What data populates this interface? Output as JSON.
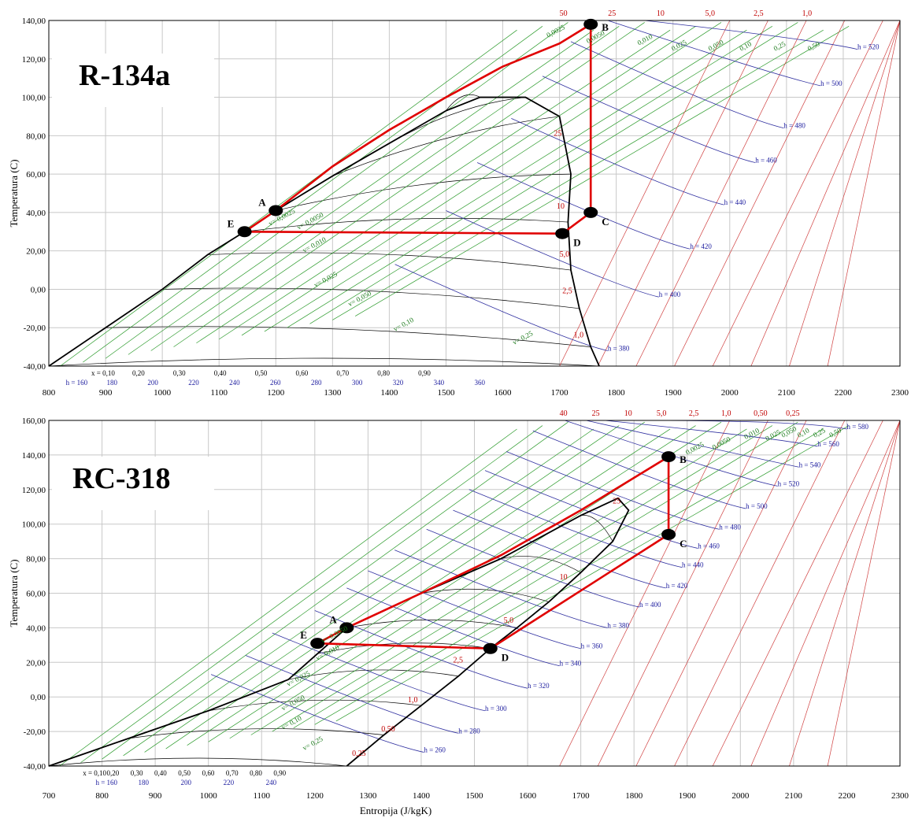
{
  "chart_data": [
    {
      "type": "line",
      "title": "R-134a",
      "xlabel": "",
      "ylabel": "Temperatura (C)",
      "xlim": [
        800,
        2300
      ],
      "ylim": [
        -40,
        140
      ],
      "x_ticks": [
        "800",
        "900",
        "1000",
        "1100",
        "1200",
        "1300",
        "1400",
        "1500",
        "1600",
        "1700",
        "1800",
        "1900",
        "2000",
        "2100",
        "2200",
        "2300"
      ],
      "y_ticks": [
        "-40,00",
        "-20,00",
        "0,00",
        "20,00",
        "40,00",
        "60,00",
        "80,00",
        "100,00",
        "120,00",
        "140,00"
      ],
      "grid": true,
      "cycle_points": [
        {
          "name": "A",
          "x": 1200,
          "y": 41
        },
        {
          "name": "B",
          "x": 1755,
          "y": 138
        },
        {
          "name": "C",
          "x": 1755,
          "y": 40
        },
        {
          "name": "D",
          "x": 1705,
          "y": 29
        },
        {
          "name": "E",
          "x": 1145,
          "y": 30
        }
      ],
      "saturation_dome": {
        "liquid": [
          [
            800,
            -40
          ],
          [
            900,
            -20
          ],
          [
            1000,
            0
          ],
          [
            1080,
            18
          ],
          [
            1145,
            30
          ],
          [
            1200,
            41
          ],
          [
            1300,
            59
          ],
          [
            1400,
            76
          ],
          [
            1500,
            93
          ],
          [
            1560,
            100
          ]
        ],
        "vapor": [
          [
            1560,
            100
          ],
          [
            1640,
            100
          ],
          [
            1700,
            90
          ],
          [
            1720,
            60
          ],
          [
            1715,
            35
          ],
          [
            1720,
            10
          ],
          [
            1735,
            -10
          ],
          [
            1755,
            -30
          ],
          [
            1770,
            -40
          ]
        ]
      },
      "cycle_path": [
        [
          1145,
          30
        ],
        [
          1200,
          41
        ],
        [
          1300,
          64
        ],
        [
          1400,
          83
        ],
        [
          1500,
          100
        ],
        [
          1600,
          116
        ],
        [
          1700,
          128
        ],
        [
          1755,
          138
        ],
        [
          1755,
          40
        ],
        [
          1705,
          29
        ],
        [
          1145,
          30
        ]
      ],
      "quality_labels": [
        "x = 0,10",
        "0,20",
        "0,30",
        "0,40",
        "0,50",
        "0,60",
        "0,70",
        "0,80",
        "0,90"
      ],
      "enthalpy_labels_low": [
        "h = 160",
        "180",
        "200",
        "220",
        "240",
        "260",
        "280",
        "300",
        "320",
        "340",
        "360"
      ],
      "enthalpy_labels_high": [
        {
          "t": "h = 380",
          "x": 1785,
          "y": -32
        },
        {
          "t": "h = 400",
          "x": 1875,
          "y": -4
        },
        {
          "t": "h = 420",
          "x": 1930,
          "y": 21
        },
        {
          "t": "h = 440",
          "x": 1990,
          "y": 44
        },
        {
          "t": "h = 460",
          "x": 2045,
          "y": 66
        },
        {
          "t": "h = 480",
          "x": 2095,
          "y": 84
        },
        {
          "t": "h = 500",
          "x": 2160,
          "y": 106
        },
        {
          "t": "h = 520",
          "x": 2225,
          "y": 125
        }
      ],
      "pressure_labels_top": [
        "50",
        "25",
        "10",
        "5,0",
        "2,5",
        "1,0"
      ],
      "pressure_labels_mid": [
        {
          "t": "25",
          "x": 1690,
          "y": 80
        },
        {
          "t": "10",
          "x": 1695,
          "y": 42
        },
        {
          "t": "5,0",
          "x": 1700,
          "y": 17
        },
        {
          "t": "2,5",
          "x": 1705,
          "y": -2
        },
        {
          "t": "1,0",
          "x": 1725,
          "y": -25
        }
      ],
      "volume_labels": [
        {
          "t": "v= 0,0025",
          "x": 1190,
          "y": 33
        },
        {
          "t": "v= 0,0050",
          "x": 1240,
          "y": 31
        },
        {
          "t": "v= 0,010",
          "x": 1250,
          "y": 19
        },
        {
          "t": "v= 0,025",
          "x": 1270,
          "y": 1
        },
        {
          "t": "v= 0,050",
          "x": 1330,
          "y": -9
        },
        {
          "t": "v= 0,10",
          "x": 1410,
          "y": -22
        },
        {
          "t": "v= 0,25",
          "x": 1620,
          "y": -29
        },
        {
          "t": "0,0025",
          "x": 1680,
          "y": 131
        },
        {
          "t": "0,0050",
          "x": 1750,
          "y": 128
        },
        {
          "t": "0,010",
          "x": 1840,
          "y": 127
        },
        {
          "t": "0,025",
          "x": 1900,
          "y": 124
        },
        {
          "t": "0,050",
          "x": 1965,
          "y": 124
        },
        {
          "t": "0,10",
          "x": 2020,
          "y": 124
        },
        {
          "t": "0,25",
          "x": 2080,
          "y": 124
        },
        {
          "t": "0,50",
          "x": 2140,
          "y": 124
        }
      ]
    },
    {
      "type": "line",
      "title": "RC-318",
      "xlabel": "Entropija (J/kgK)",
      "ylabel": "Temperatura (C)",
      "xlim": [
        700,
        2300
      ],
      "ylim": [
        -40,
        160
      ],
      "x_ticks": [
        "700",
        "800",
        "900",
        "1000",
        "1100",
        "1200",
        "1300",
        "1400",
        "1500",
        "1600",
        "1700",
        "1800",
        "1900",
        "2000",
        "2100",
        "2200",
        "2300"
      ],
      "y_ticks": [
        "-40,00",
        "-20,00",
        "0,00",
        "20,00",
        "40,00",
        "60,00",
        "80,00",
        "100,00",
        "120,00",
        "140,00",
        "160,00"
      ],
      "grid": true,
      "cycle_points": [
        {
          "name": "A",
          "x": 1260,
          "y": 40
        },
        {
          "name": "B",
          "x": 1865,
          "y": 139
        },
        {
          "name": "C",
          "x": 1865,
          "y": 94
        },
        {
          "name": "D",
          "x": 1530,
          "y": 28
        },
        {
          "name": "E",
          "x": 1205,
          "y": 31
        }
      ],
      "saturation_dome": {
        "liquid": [
          [
            700,
            -40
          ],
          [
            850,
            -24
          ],
          [
            1000,
            -8
          ],
          [
            1150,
            10
          ],
          [
            1205,
            25
          ],
          [
            1260,
            40
          ],
          [
            1400,
            60
          ],
          [
            1550,
            80
          ],
          [
            1700,
            105
          ],
          [
            1770,
            115
          ]
        ],
        "vapor": [
          [
            1770,
            115
          ],
          [
            1790,
            108
          ],
          [
            1760,
            90
          ],
          [
            1700,
            72
          ],
          [
            1640,
            55
          ],
          [
            1580,
            40
          ],
          [
            1530,
            28
          ],
          [
            1470,
            12
          ],
          [
            1400,
            -5
          ],
          [
            1330,
            -22
          ],
          [
            1260,
            -40
          ]
        ]
      },
      "cycle_path": [
        [
          1205,
          31
        ],
        [
          1260,
          40
        ],
        [
          1400,
          60
        ],
        [
          1550,
          82
        ],
        [
          1700,
          108
        ],
        [
          1865,
          139
        ],
        [
          1865,
          94
        ],
        [
          1530,
          28
        ],
        [
          1205,
          31
        ]
      ],
      "quality_labels": [
        "x = 0,10",
        "0,20",
        "0,30",
        "0,40",
        "0,50",
        "0,60",
        "0,70",
        "0,80",
        "0,90"
      ],
      "enthalpy_labels_low": [
        "h = 160",
        "180",
        "200",
        "220",
        "240"
      ],
      "enthalpy_labels_high": [
        {
          "t": "h = 260",
          "x": 1405,
          "y": -32
        },
        {
          "t": "h = 280",
          "x": 1470,
          "y": -21
        },
        {
          "t": "h = 300",
          "x": 1520,
          "y": -8
        },
        {
          "t": "h = 320",
          "x": 1600,
          "y": 5
        },
        {
          "t": "h = 340",
          "x": 1660,
          "y": 18
        },
        {
          "t": "h = 360",
          "x": 1700,
          "y": 28
        },
        {
          "t": "h = 380",
          "x": 1750,
          "y": 40
        },
        {
          "t": "h = 400",
          "x": 1810,
          "y": 52
        },
        {
          "t": "h = 420",
          "x": 1860,
          "y": 63
        },
        {
          "t": "h = 440",
          "x": 1890,
          "y": 75
        },
        {
          "t": "h = 460",
          "x": 1920,
          "y": 86
        },
        {
          "t": "h = 480",
          "x": 1960,
          "y": 97
        },
        {
          "t": "h = 500",
          "x": 2010,
          "y": 109
        },
        {
          "t": "h = 520",
          "x": 2070,
          "y": 122
        },
        {
          "t": "h = 540",
          "x": 2110,
          "y": 133
        },
        {
          "t": "h = 560",
          "x": 2145,
          "y": 145
        },
        {
          "t": "h = 580",
          "x": 2200,
          "y": 155
        }
      ],
      "pressure_labels_top": [
        "40",
        "25",
        "10",
        "5,0",
        "2,5",
        "1,0",
        "0,50",
        "0,25"
      ],
      "pressure_labels_mid": [
        {
          "t": "25",
          "x": 1760,
          "y": 112
        },
        {
          "t": "10",
          "x": 1660,
          "y": 68
        },
        {
          "t": "5,0",
          "x": 1555,
          "y": 43
        },
        {
          "t": "2,5",
          "x": 1460,
          "y": 20
        },
        {
          "t": "1,0",
          "x": 1375,
          "y": -3
        },
        {
          "t": "0,50",
          "x": 1325,
          "y": -20
        },
        {
          "t": "0,25",
          "x": 1270,
          "y": -34
        }
      ],
      "volume_labels": [
        {
          "t": "v= 0,0050",
          "x": 1215,
          "y": 31
        },
        {
          "t": "v= 0,010",
          "x": 1205,
          "y": 21
        },
        {
          "t": "v= 0,025",
          "x": 1150,
          "y": 6
        },
        {
          "t": "v= 0,050",
          "x": 1140,
          "y": -8
        },
        {
          "t": "v= 0,10",
          "x": 1140,
          "y": -19
        },
        {
          "t": "v= 0,25",
          "x": 1180,
          "y": -31
        },
        {
          "t": "0,0025",
          "x": 1900,
          "y": 140
        },
        {
          "t": "0,0050",
          "x": 1950,
          "y": 143
        },
        {
          "t": "0,010",
          "x": 2010,
          "y": 149
        },
        {
          "t": "0,025",
          "x": 2050,
          "y": 148
        },
        {
          "t": "0,050",
          "x": 2080,
          "y": 150
        },
        {
          "t": "0,10",
          "x": 2110,
          "y": 150
        },
        {
          "t": "0,25",
          "x": 2140,
          "y": 150
        },
        {
          "t": "0,50",
          "x": 2170,
          "y": 150
        }
      ]
    }
  ]
}
